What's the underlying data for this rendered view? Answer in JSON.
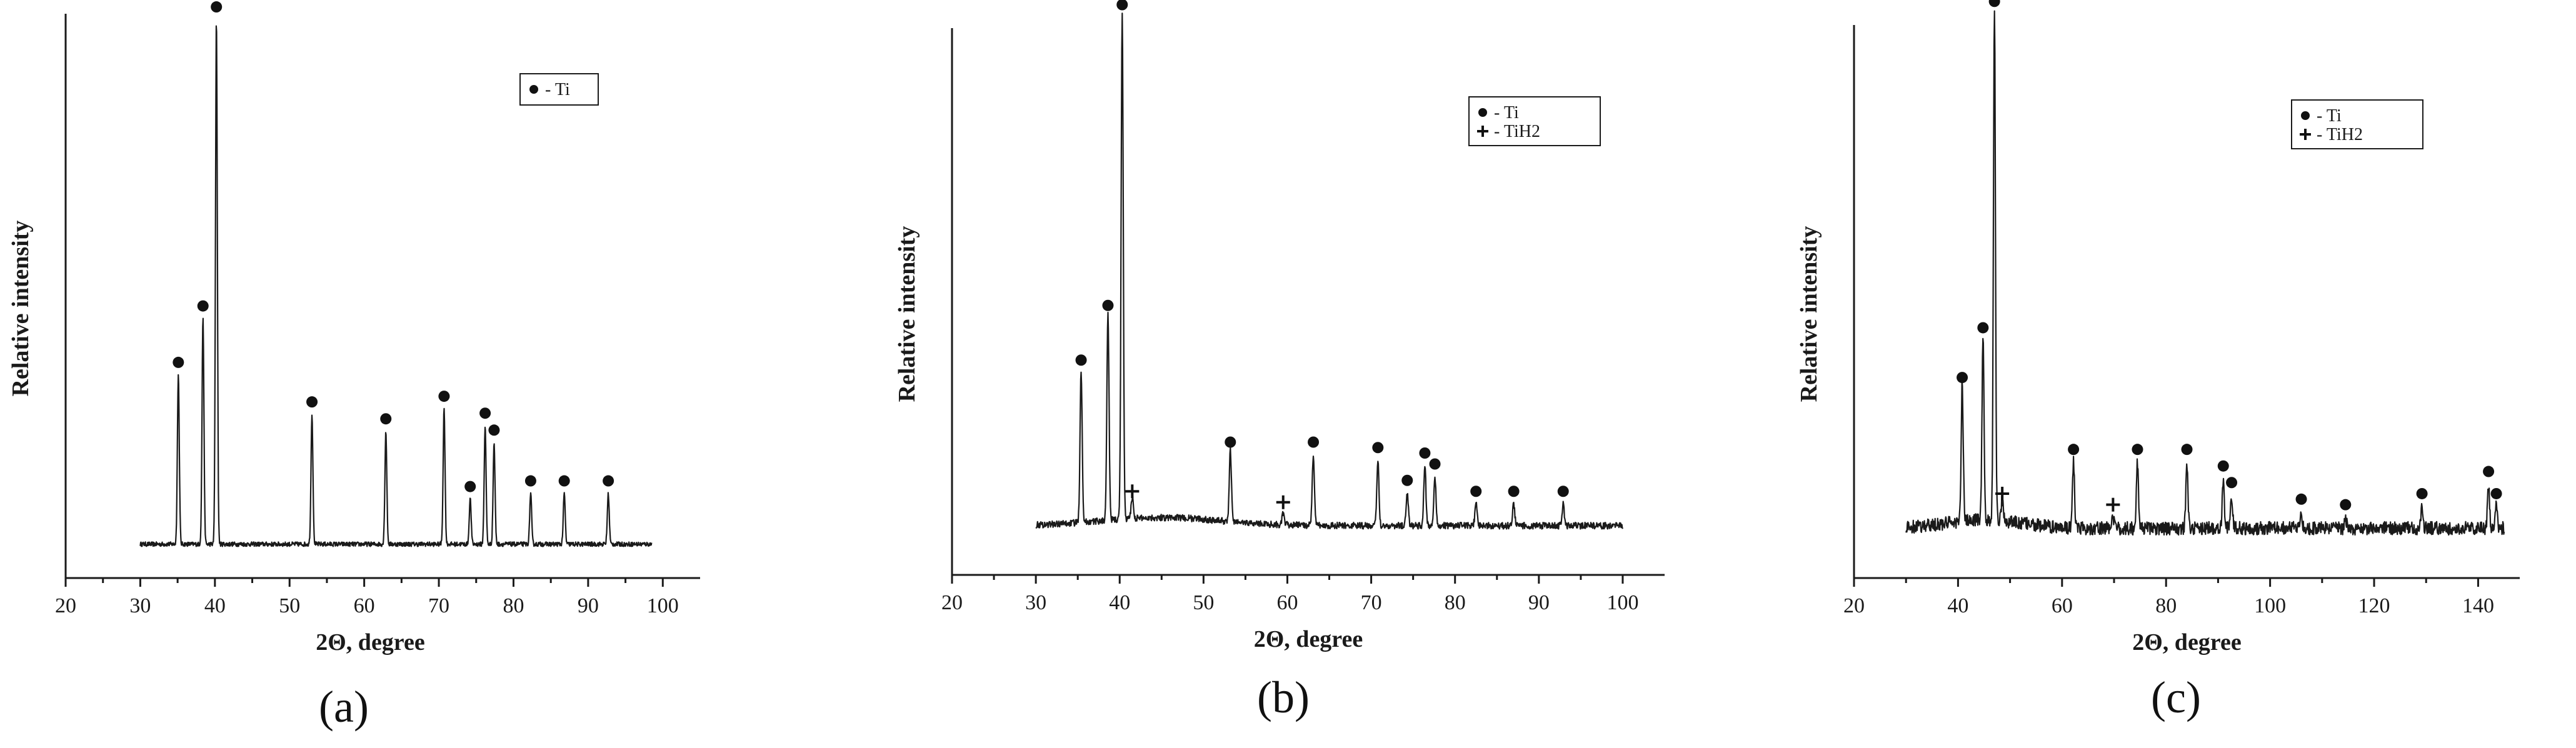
{
  "chart_data": [
    {
      "id": "a",
      "type": "line",
      "panel_label": "(a)",
      "xlabel": "2Θ, degree",
      "ylabel": "Relative intensity",
      "xlim": [
        20,
        105
      ],
      "ylim": [
        0,
        1
      ],
      "x_ticks": [
        20,
        30,
        40,
        50,
        60,
        70,
        80,
        90,
        100
      ],
      "x_tick_labels": [
        "20",
        "30",
        "40",
        "50",
        "60",
        "70",
        "80",
        "90",
        "100"
      ],
      "trace_range": [
        30,
        98.5
      ],
      "baseline": 0.06,
      "noise": 0.004,
      "legend": [
        {
          "symbol": "dot",
          "label": "- Ti"
        }
      ],
      "legend_position": "top-right",
      "peaks": [
        {
          "x": 35.1,
          "y": 0.3,
          "phase": "Ti"
        },
        {
          "x": 38.4,
          "y": 0.4,
          "phase": "Ti"
        },
        {
          "x": 40.2,
          "y": 0.93,
          "phase": "Ti"
        },
        {
          "x": 53.0,
          "y": 0.23,
          "phase": "Ti"
        },
        {
          "x": 62.9,
          "y": 0.2,
          "phase": "Ti"
        },
        {
          "x": 70.7,
          "y": 0.24,
          "phase": "Ti"
        },
        {
          "x": 74.2,
          "y": 0.08,
          "phase": "Ti"
        },
        {
          "x": 76.2,
          "y": 0.21,
          "phase": "Ti"
        },
        {
          "x": 77.4,
          "y": 0.18,
          "phase": "Ti"
        },
        {
          "x": 82.3,
          "y": 0.09,
          "phase": "Ti"
        },
        {
          "x": 86.8,
          "y": 0.09,
          "phase": "Ti"
        },
        {
          "x": 92.7,
          "y": 0.09,
          "phase": "Ti"
        }
      ]
    },
    {
      "id": "b",
      "type": "line",
      "panel_label": "(b)",
      "xlabel": "2Θ, degree",
      "ylabel": "Relative intensity",
      "xlim": [
        20,
        105
      ],
      "ylim": [
        0,
        1
      ],
      "x_ticks": [
        20,
        30,
        40,
        50,
        60,
        70,
        80,
        90,
        100
      ],
      "x_tick_labels": [
        "20",
        "30",
        "40",
        "50",
        "60",
        "70",
        "80",
        "90",
        "100"
      ],
      "trace_range": [
        30,
        100
      ],
      "baseline": 0.09,
      "noise": 0.006,
      "legend": [
        {
          "symbol": "dot",
          "label": "- Ti"
        },
        {
          "symbol": "plus",
          "label": "- TiH2"
        }
      ],
      "legend_position": "top-right",
      "peaks": [
        {
          "x": 35.4,
          "y": 0.28,
          "phase": "Ti"
        },
        {
          "x": 38.6,
          "y": 0.38,
          "phase": "Ti"
        },
        {
          "x": 40.3,
          "y": 0.93,
          "phase": "Ti"
        },
        {
          "x": 41.5,
          "y": 0.04,
          "phase": "TiH2"
        },
        {
          "x": 53.2,
          "y": 0.13,
          "phase": "Ti"
        },
        {
          "x": 59.5,
          "y": 0.02,
          "phase": "TiH2"
        },
        {
          "x": 63.1,
          "y": 0.13,
          "phase": "Ti"
        },
        {
          "x": 70.8,
          "y": 0.12,
          "phase": "Ti"
        },
        {
          "x": 74.3,
          "y": 0.06,
          "phase": "Ti"
        },
        {
          "x": 76.4,
          "y": 0.11,
          "phase": "Ti"
        },
        {
          "x": 77.6,
          "y": 0.09,
          "phase": "Ti"
        },
        {
          "x": 82.5,
          "y": 0.04,
          "phase": "Ti"
        },
        {
          "x": 87.0,
          "y": 0.04,
          "phase": "Ti"
        },
        {
          "x": 92.9,
          "y": 0.04,
          "phase": "Ti"
        }
      ]
    },
    {
      "id": "c",
      "type": "line",
      "panel_label": "(c)",
      "xlabel": "2Θ, degree",
      "ylabel": "Relative intensity",
      "xlim": [
        20,
        148
      ],
      "ylim": [
        0,
        1
      ],
      "x_ticks": [
        20,
        40,
        60,
        80,
        100,
        120,
        140
      ],
      "x_tick_labels": [
        "20",
        "40",
        "60",
        "80",
        "100",
        "120",
        "140"
      ],
      "trace_range": [
        30,
        145
      ],
      "baseline": 0.09,
      "noise": 0.012,
      "legend": [
        {
          "symbol": "dot",
          "label": "- Ti"
        },
        {
          "symbol": "plus",
          "label": "- TiH2"
        }
      ],
      "legend_position": "top-right",
      "peaks": [
        {
          "x": 40.8,
          "y": 0.25,
          "phase": "Ti"
        },
        {
          "x": 44.8,
          "y": 0.34,
          "phase": "Ti"
        },
        {
          "x": 47.0,
          "y": 0.93,
          "phase": "Ti"
        },
        {
          "x": 48.5,
          "y": 0.04,
          "phase": "TiH2"
        },
        {
          "x": 62.2,
          "y": 0.12,
          "phase": "Ti"
        },
        {
          "x": 69.8,
          "y": 0.02,
          "phase": "TiH2"
        },
        {
          "x": 74.5,
          "y": 0.12,
          "phase": "Ti"
        },
        {
          "x": 84.0,
          "y": 0.12,
          "phase": "Ti"
        },
        {
          "x": 91.0,
          "y": 0.09,
          "phase": "Ti"
        },
        {
          "x": 92.6,
          "y": 0.06,
          "phase": "Ti"
        },
        {
          "x": 106.0,
          "y": 0.03,
          "phase": "Ti"
        },
        {
          "x": 114.5,
          "y": 0.02,
          "phase": "Ti"
        },
        {
          "x": 129.2,
          "y": 0.04,
          "phase": "Ti"
        },
        {
          "x": 142.0,
          "y": 0.08,
          "phase": "Ti"
        },
        {
          "x": 143.5,
          "y": 0.04,
          "phase": "Ti"
        }
      ]
    }
  ],
  "labels": {
    "a": "(a)",
    "b": "(b)",
    "c": "(c)"
  }
}
